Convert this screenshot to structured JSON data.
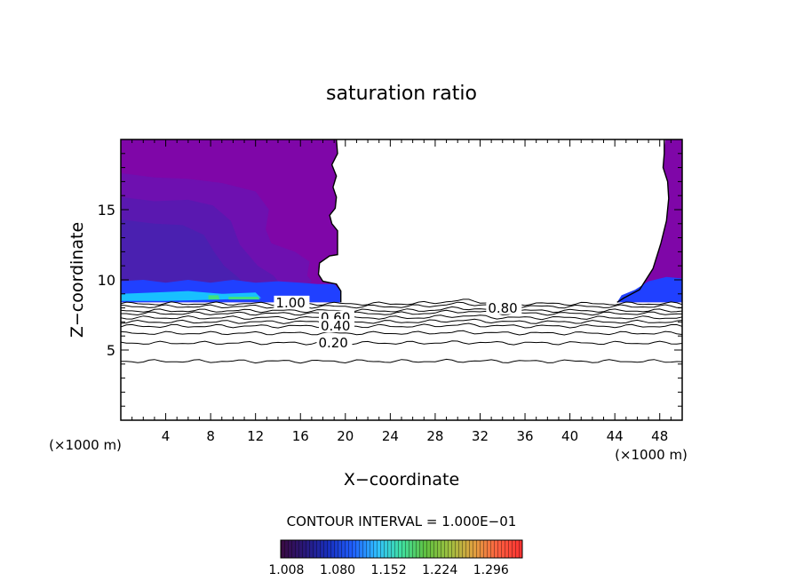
{
  "chart_data": {
    "type": "contour",
    "title": "saturation ratio",
    "xlabel": "X−coordinate",
    "ylabel": "Z−coordinate",
    "x_unit_left": "(×1000 m)",
    "x_unit_right": "(×1000 m)",
    "xlim": [
      0,
      50
    ],
    "ylim": [
      0,
      20
    ],
    "x_ticks": [
      4,
      8,
      12,
      16,
      20,
      24,
      28,
      32,
      36,
      40,
      44,
      48
    ],
    "x_tick_labels": [
      "4",
      "8",
      "12",
      "16",
      "20",
      "24",
      "28",
      "32",
      "36",
      "40",
      "44",
      "48"
    ],
    "y_ticks": [
      5,
      10,
      15
    ],
    "y_tick_labels": [
      "5",
      "10",
      "15"
    ],
    "contour_interval_label": "CONTOUR INTERVAL = 1.000E−01",
    "contour_lines": [
      {
        "level": 1.0,
        "label": "1.00",
        "z": 8.3
      },
      {
        "level": 0.9,
        "label": "",
        "z": 8.1
      },
      {
        "level": 0.8,
        "label": "0.80",
        "z": 7.8
      },
      {
        "level": 0.7,
        "label": "",
        "z": 7.6
      },
      {
        "level": 0.6,
        "label": "0.60",
        "z": 7.3
      },
      {
        "level": 0.5,
        "label": "",
        "z": 7.0
      },
      {
        "level": 0.4,
        "label": "0.40",
        "z": 6.7
      },
      {
        "level": 0.3,
        "label": "",
        "z": 6.2
      },
      {
        "level": 0.2,
        "label": "0.20",
        "z": 5.5
      },
      {
        "level": 0.1,
        "label": "",
        "z": 4.2
      }
    ],
    "colorbar_min": 1.0,
    "colorbar_max": 1.34,
    "colorbar_labels": [
      "1.008",
      "1.080",
      "1.152",
      "1.224",
      "1.296"
    ],
    "colorbar_colors": [
      "#3a0a40",
      "#28187a",
      "#1830c0",
      "#2060ff",
      "#30c0ff",
      "#40e0a0",
      "#60c040",
      "#a0c040",
      "#e0a040",
      "#ff6040",
      "#ff3030"
    ],
    "fill_colors": {
      "outer": "#7f06a8",
      "mid": "#6e10b0",
      "inner": "#5a18b0",
      "core": "#4a20b0",
      "band": "#2040ff",
      "band_bright": "#18c0ff",
      "green": "#40e080"
    }
  }
}
